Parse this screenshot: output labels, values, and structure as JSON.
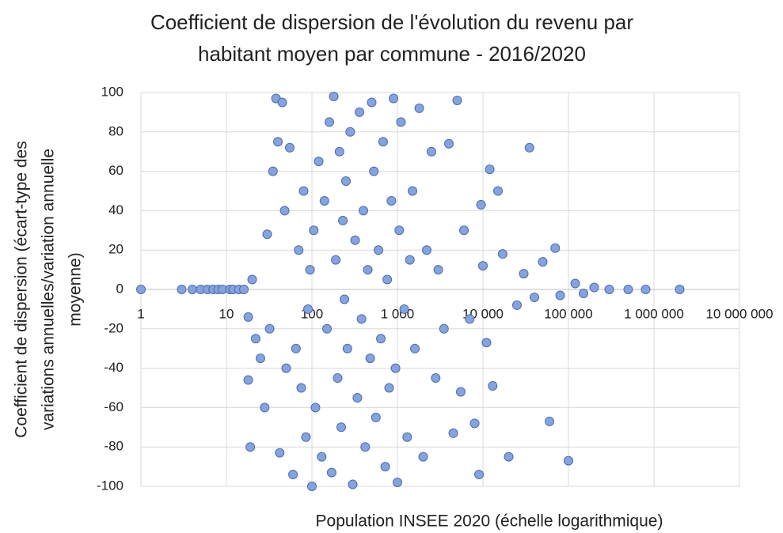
{
  "chart_data": {
    "type": "scatter",
    "title": [
      "Coefficient de dispersion de l'évolution du revenu par",
      "habitant moyen par commune - 2016/2020"
    ],
    "x_label": "Population INSEE 2020 (échelle logarithmique)",
    "y_label": [
      "Coefficient de dispersion (écart-type des",
      "variations annuelles/variation annuelle",
      "moyenne)"
    ],
    "x_scale": "log",
    "grid": true,
    "color": "#87a3dc",
    "edge_color": "#4a6cb3",
    "xlim": [
      1,
      10000000
    ],
    "ylim": [
      -100,
      100
    ],
    "xticks": [
      {
        "value": 1,
        "label": "1"
      },
      {
        "value": 10,
        "label": "10"
      },
      {
        "value": 100,
        "label": "100"
      },
      {
        "value": 1000,
        "label": "1 000"
      },
      {
        "value": 10000,
        "label": "10 000"
      },
      {
        "value": 100000,
        "label": "100 000"
      },
      {
        "value": 1000000,
        "label": "1 000 000"
      },
      {
        "value": 10000000,
        "label": "10 000 000"
      }
    ],
    "yticks": [
      -100,
      -80,
      -60,
      -40,
      -20,
      0,
      20,
      40,
      60,
      80,
      100
    ],
    "x": [
      1,
      3,
      4,
      5,
      6,
      7,
      8,
      9,
      11,
      12,
      14,
      16,
      18,
      18,
      19,
      20,
      22,
      25,
      28,
      30,
      32,
      35,
      38,
      40,
      42,
      45,
      48,
      50,
      55,
      60,
      65,
      70,
      75,
      80,
      85,
      90,
      95,
      100,
      105,
      110,
      120,
      130,
      140,
      150,
      160,
      170,
      180,
      190,
      200,
      210,
      220,
      230,
      240,
      250,
      260,
      280,
      300,
      320,
      340,
      360,
      380,
      400,
      420,
      450,
      480,
      500,
      530,
      560,
      600,
      640,
      680,
      720,
      760,
      800,
      850,
      900,
      950,
      1000,
      1050,
      1100,
      1200,
      1300,
      1400,
      1500,
      1600,
      1800,
      2000,
      2200,
      2500,
      2800,
      3000,
      3500,
      4000,
      4500,
      5000,
      5500,
      6000,
      7000,
      8000,
      9000,
      9500,
      10000,
      11000,
      12000,
      13000,
      15000,
      17000,
      20000,
      25000,
      30000,
      35000,
      40000,
      50000,
      60000,
      70000,
      80000,
      100000,
      120000,
      150000,
      200000,
      300000,
      500000,
      800000,
      2000000
    ],
    "values": [
      0,
      0,
      0,
      0,
      0,
      0,
      0,
      0,
      0,
      0,
      0,
      0,
      -14,
      -46,
      -80,
      5,
      -25,
      -35,
      -60,
      28,
      -20,
      60,
      97,
      75,
      -83,
      95,
      40,
      -40,
      72,
      -94,
      -30,
      20,
      -50,
      50,
      -75,
      -10,
      10,
      -100,
      30,
      -60,
      65,
      -85,
      45,
      -20,
      85,
      -93,
      98,
      15,
      -45,
      70,
      -70,
      35,
      -5,
      55,
      -30,
      80,
      -99,
      25,
      -55,
      90,
      -15,
      40,
      -80,
      10,
      -35,
      95,
      60,
      -65,
      20,
      -25,
      75,
      -90,
      5,
      -50,
      45,
      97,
      -40,
      -98,
      30,
      85,
      -10,
      -75,
      15,
      50,
      -30,
      92,
      -85,
      20,
      70,
      -45,
      10,
      -20,
      74,
      -73,
      96,
      -52,
      30,
      -15,
      -68,
      -94,
      43,
      12,
      -27,
      61,
      -49,
      50,
      18,
      -85,
      -8,
      8,
      72,
      -4,
      14,
      -67,
      21,
      -3,
      -87,
      3,
      -2,
      1,
      0,
      0,
      0,
      0
    ]
  }
}
